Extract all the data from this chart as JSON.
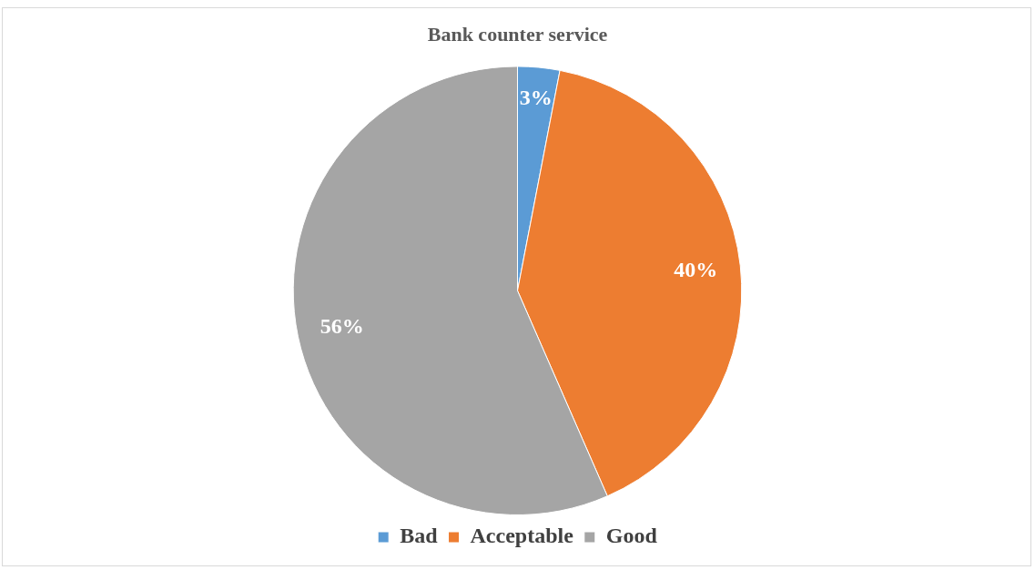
{
  "chart_data": {
    "type": "pie",
    "title": "Bank counter service",
    "categories": [
      "Bad",
      "Acceptable",
      "Good"
    ],
    "values": [
      3,
      40,
      56
    ],
    "colors": [
      "#5b9bd5",
      "#ed7d31",
      "#a5a5a5"
    ],
    "value_labels": [
      "3%",
      "40%",
      "56%"
    ],
    "legend": "bottom"
  }
}
